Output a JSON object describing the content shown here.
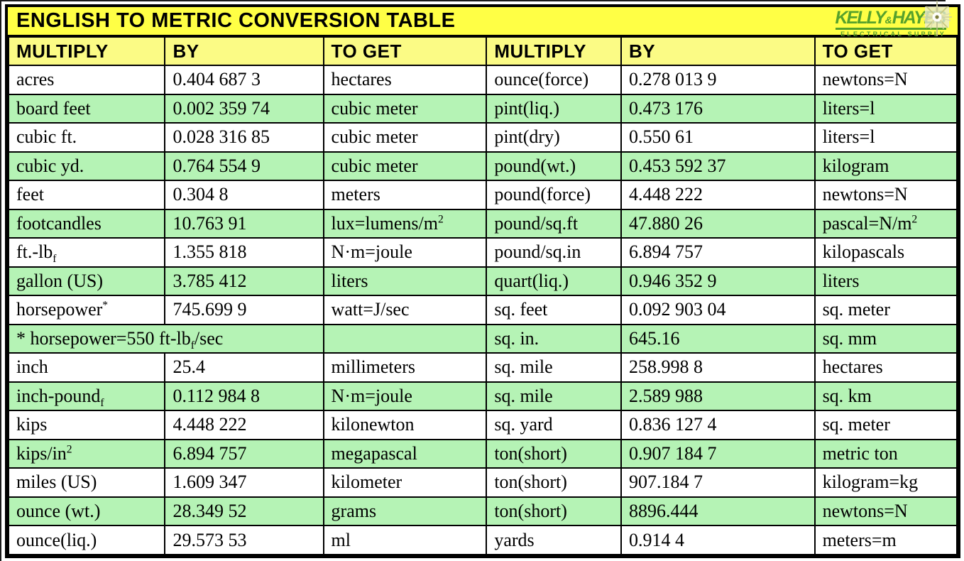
{
  "title": "ENGLISH TO METRIC CONVERSION TABLE",
  "logo": {
    "word1": "KELLY",
    "amp": "&",
    "word2": "HAYES",
    "tagline": "ELECTRICAL SUPPLY",
    "sparkle_icon": "sparkle-starburst"
  },
  "colors": {
    "title_bg": "#ffff45",
    "header_bg": "#fbfb85",
    "row_green": "#b5f3b5",
    "row_white": "#ffffff",
    "border": "#000000",
    "logo_green": "#56a12c"
  },
  "table": {
    "columns": [
      "MULTIPLY",
      "BY",
      "TO GET",
      "MULTIPLY",
      "BY",
      "TO GET"
    ],
    "rows": [
      {
        "cells": [
          "acres",
          "0.404 687 3",
          "hectares",
          "ounce(force)",
          "0.278 013 9",
          "newtons=N"
        ]
      },
      {
        "cells": [
          "board feet",
          "0.002 359 74",
          "cubic meter",
          "pint(liq.)",
          "0.473 176",
          "liters=l"
        ]
      },
      {
        "cells": [
          "cubic ft.",
          "0.028 316 85",
          "cubic meter",
          "pint(dry)",
          "0.550 61",
          "liters=l"
        ]
      },
      {
        "cells": [
          "cubic yd.",
          "0.764 554 9",
          "cubic meter",
          "pound(wt.)",
          "0.453 592 37",
          "kilogram"
        ]
      },
      {
        "cells": [
          "feet",
          "0.304 8",
          "meters",
          "pound(force)",
          "4.448 222",
          "newtons=N"
        ]
      },
      {
        "cells": [
          "footcandles",
          "10.763 91",
          "lux=lumens/m^2^",
          "pound/sq.ft",
          "47.880 26",
          "pascal=N/m^2^"
        ]
      },
      {
        "cells": [
          "ft.-lb~f~",
          "1.355 818",
          "N·m=joule",
          "pound/sq.in",
          "6.894 757",
          "kilopascals"
        ]
      },
      {
        "cells": [
          "gallon (US)",
          "3.785 412",
          "liters",
          "quart(liq.)",
          "0.946 352 9",
          "liters"
        ]
      },
      {
        "cells": [
          "horsepower^*^",
          "745.699 9",
          "watt=J/sec",
          "sq. feet",
          "0.092 903 04",
          "sq. meter"
        ]
      },
      {
        "span_note": true,
        "cells": [
          "* horsepower=550 ft-lb~f~/sec",
          "",
          "sq. in.",
          "645.16",
          "sq. mm"
        ]
      },
      {
        "cells": [
          "inch",
          "25.4",
          "millimeters",
          "sq. mile",
          "258.998 8",
          "hectares"
        ]
      },
      {
        "cells": [
          "inch-pound~f~",
          "0.112 984 8",
          "N·m=joule",
          "sq. mile",
          "2.589 988",
          "sq. km"
        ]
      },
      {
        "cells": [
          "kips",
          "4.448 222",
          "kilonewton",
          "sq. yard",
          "0.836 127 4",
          "sq. meter"
        ]
      },
      {
        "cells": [
          "kips/in^2^",
          "6.894 757",
          "megapascal",
          "ton(short)",
          "0.907 184 7",
          "metric ton"
        ]
      },
      {
        "cells": [
          "miles (US)",
          "1.609 347",
          "kilometer",
          "ton(short)",
          "907.184 7",
          "kilogram=kg"
        ]
      },
      {
        "cells": [
          "ounce (wt.)",
          "28.349 52",
          "grams",
          "ton(short)",
          "8896.444",
          "newtons=N"
        ]
      },
      {
        "cells": [
          "ounce(liq.)",
          "29.573 53",
          "ml",
          "yards",
          "0.914 4",
          "meters=m"
        ]
      }
    ]
  }
}
